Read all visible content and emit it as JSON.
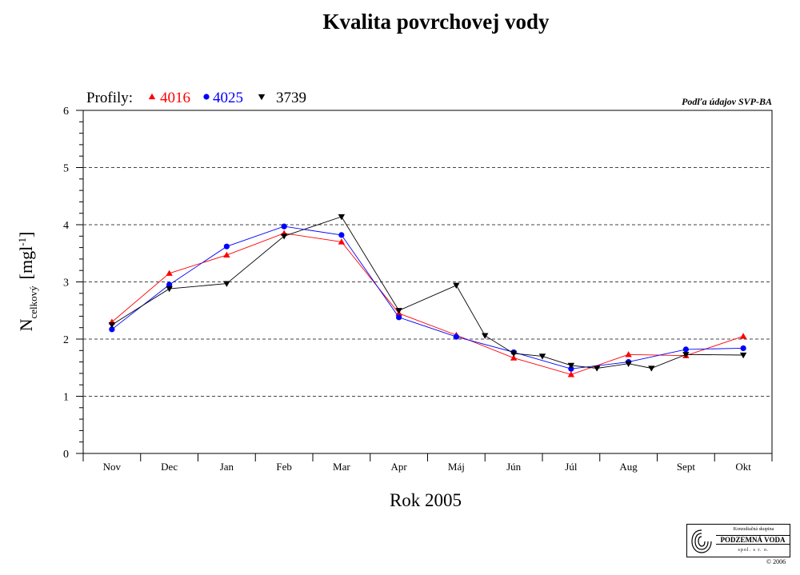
{
  "page": {
    "title": "Kvalita povrchovej vody",
    "source_note": "Podľa údajov SVP-BA",
    "legend_prefix": "Profily:",
    "logo": {
      "line1": "Konzultačná skupina",
      "line2": "PODZEMNÁ VODA",
      "line3": "spol. s r. o.",
      "copyright": "© 2006"
    }
  },
  "chart_data": {
    "type": "line",
    "title": "Kvalita povrchovej vody",
    "xlabel": "Rok 2005",
    "ylabel_main": "N",
    "ylabel_sub": "celkový",
    "ylabel_unit": "[mgl",
    "ylabel_unit_sup": "-1",
    "ylabel_unit_end": "]",
    "categories": [
      "Nov",
      "Dec",
      "Jan",
      "Feb",
      "Mar",
      "Apr",
      "Máj",
      "Jún",
      "Júl",
      "Aug",
      "Sept",
      "Okt"
    ],
    "xlim": [
      0,
      12
    ],
    "ylim": [
      0,
      6
    ],
    "yticks": [
      0,
      1,
      2,
      3,
      4,
      5,
      6
    ],
    "grid": "horizontal-dashed",
    "legend_position": "top-left",
    "series": [
      {
        "name": "4016",
        "color": "#ff0000",
        "marker": "triangle-up",
        "points": [
          [
            0.5,
            2.3
          ],
          [
            1.5,
            3.15
          ],
          [
            2.5,
            3.47
          ],
          [
            3.5,
            3.85
          ],
          [
            4.5,
            3.7
          ],
          [
            5.5,
            2.45
          ],
          [
            6.5,
            2.07
          ],
          [
            7.5,
            1.67
          ],
          [
            8.5,
            1.38
          ],
          [
            9.5,
            1.73
          ],
          [
            10.5,
            1.71
          ],
          [
            11.5,
            2.05
          ]
        ]
      },
      {
        "name": "4025",
        "color": "#0000ff",
        "marker": "circle",
        "points": [
          [
            0.5,
            2.17
          ],
          [
            1.5,
            2.95
          ],
          [
            2.5,
            3.62
          ],
          [
            3.5,
            3.97
          ],
          [
            4.5,
            3.82
          ],
          [
            5.5,
            2.38
          ],
          [
            6.5,
            2.04
          ],
          [
            7.5,
            1.77
          ],
          [
            8.5,
            1.48
          ],
          [
            9.5,
            1.6
          ],
          [
            10.5,
            1.82
          ],
          [
            11.5,
            1.84
          ]
        ]
      },
      {
        "name": "3739",
        "color": "#000000",
        "marker": "triangle-down",
        "points": [
          [
            0.5,
            2.25
          ],
          [
            1.5,
            2.88
          ],
          [
            2.5,
            2.97
          ],
          [
            3.5,
            3.8
          ],
          [
            4.5,
            4.14
          ],
          [
            5.5,
            2.5
          ],
          [
            6.5,
            2.94
          ],
          [
            7.0,
            2.06
          ],
          [
            7.5,
            1.75
          ],
          [
            8.0,
            1.7
          ],
          [
            8.5,
            1.54
          ],
          [
            8.95,
            1.49
          ],
          [
            9.5,
            1.57
          ],
          [
            9.9,
            1.49
          ],
          [
            10.5,
            1.73
          ],
          [
            11.5,
            1.72
          ]
        ]
      }
    ]
  }
}
